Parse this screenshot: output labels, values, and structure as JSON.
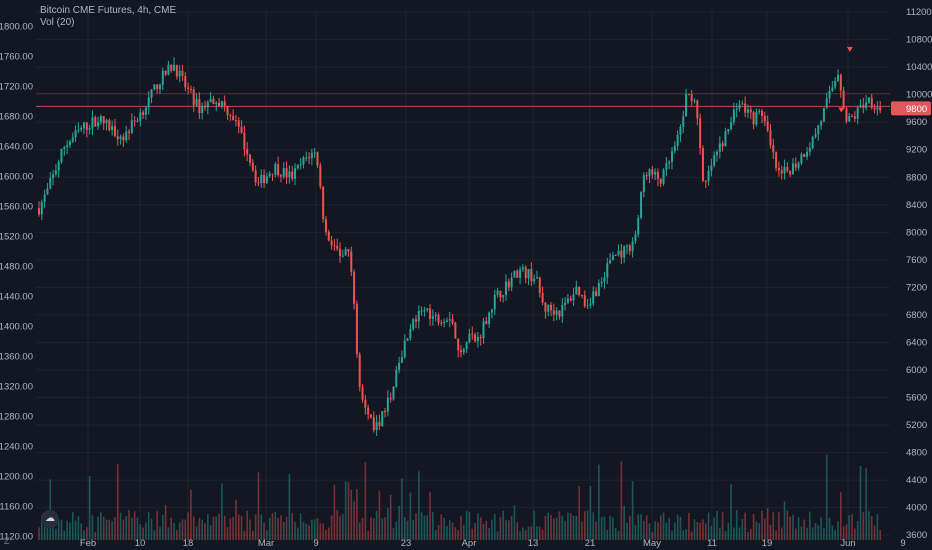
{
  "header": {
    "symbol_line": "Bitcoin CME Futures, 4h, CME",
    "volume_label": "Vol (20)"
  },
  "footer": {
    "zoom_label": "Z"
  },
  "colors": {
    "background": "#131722",
    "grid": "#1f2330",
    "up": "#26a69a",
    "down": "#ef5350",
    "price_tag": "#e0585b",
    "hline": "#ef5350",
    "text": "#b2b5be"
  },
  "chart_data": {
    "type": "candlestick",
    "title": "Bitcoin CME Futures, 4h, CME",
    "left_axis": {
      "ticks": [
        "1800.00",
        "1760.00",
        "1720.00",
        "1680.00",
        "1640.00",
        "1600.00",
        "1560.00",
        "1520.00",
        "1480.00",
        "1440.00",
        "1400.00",
        "1360.00",
        "1320.00",
        "1280.00",
        "1240.00",
        "1200.00",
        "1160.00",
        "1120.00"
      ],
      "range": [
        1115,
        1822
      ]
    },
    "right_axis": {
      "ticks": [
        "11200",
        "10800",
        "10400",
        "10000",
        "9600",
        "9200",
        "8800",
        "8400",
        "8000",
        "7600",
        "7200",
        "6800",
        "6400",
        "6000",
        "5600",
        "5200",
        "4800",
        "4400",
        "4000",
        "3600"
      ],
      "range": [
        3530,
        11230
      ]
    },
    "x_ticks": [
      "Feb",
      "10",
      "18",
      "Mar",
      "9",
      "23",
      "Apr",
      "13",
      "21",
      "May",
      "11",
      "19",
      "Jun",
      "9"
    ],
    "current_price_label": "9800",
    "horizontal_line_price": 9830,
    "grid": true,
    "volume": {
      "name": "Vol (20)",
      "approx_max": 1.0
    },
    "price_path": [
      {
        "t": 0.0,
        "p": 8350
      },
      {
        "t": 0.01,
        "p": 8600
      },
      {
        "t": 0.03,
        "p": 9250
      },
      {
        "t": 0.05,
        "p": 9500
      },
      {
        "t": 0.07,
        "p": 9650
      },
      {
        "t": 0.1,
        "p": 9380
      },
      {
        "t": 0.13,
        "p": 9900
      },
      {
        "t": 0.14,
        "p": 10150
      },
      {
        "t": 0.16,
        "p": 10450
      },
      {
        "t": 0.17,
        "p": 10200
      },
      {
        "t": 0.19,
        "p": 9800
      },
      {
        "t": 0.21,
        "p": 9950
      },
      {
        "t": 0.23,
        "p": 9700
      },
      {
        "t": 0.25,
        "p": 9100
      },
      {
        "t": 0.26,
        "p": 8700
      },
      {
        "t": 0.28,
        "p": 8950
      },
      {
        "t": 0.3,
        "p": 8800
      },
      {
        "t": 0.32,
        "p": 9120
      },
      {
        "t": 0.33,
        "p": 9150
      },
      {
        "t": 0.34,
        "p": 8000
      },
      {
        "t": 0.36,
        "p": 7650
      },
      {
        "t": 0.37,
        "p": 7700
      },
      {
        "t": 0.38,
        "p": 5900
      },
      {
        "t": 0.39,
        "p": 5350
      },
      {
        "t": 0.4,
        "p": 5150
      },
      {
        "t": 0.42,
        "p": 5650
      },
      {
        "t": 0.43,
        "p": 6200
      },
      {
        "t": 0.44,
        "p": 6600
      },
      {
        "t": 0.46,
        "p": 6900
      },
      {
        "t": 0.47,
        "p": 6750
      },
      {
        "t": 0.49,
        "p": 6800
      },
      {
        "t": 0.5,
        "p": 6150
      },
      {
        "t": 0.51,
        "p": 6550
      },
      {
        "t": 0.52,
        "p": 6400
      },
      {
        "t": 0.54,
        "p": 7000
      },
      {
        "t": 0.55,
        "p": 7150
      },
      {
        "t": 0.57,
        "p": 7450
      },
      {
        "t": 0.59,
        "p": 7350
      },
      {
        "t": 0.6,
        "p": 6900
      },
      {
        "t": 0.62,
        "p": 6850
      },
      {
        "t": 0.64,
        "p": 7200
      },
      {
        "t": 0.65,
        "p": 6950
      },
      {
        "t": 0.67,
        "p": 7300
      },
      {
        "t": 0.68,
        "p": 7650
      },
      {
        "t": 0.7,
        "p": 7750
      },
      {
        "t": 0.71,
        "p": 8000
      },
      {
        "t": 0.72,
        "p": 8900
      },
      {
        "t": 0.74,
        "p": 8750
      },
      {
        "t": 0.76,
        "p": 9350
      },
      {
        "t": 0.77,
        "p": 10000
      },
      {
        "t": 0.78,
        "p": 9950
      },
      {
        "t": 0.79,
        "p": 8600
      },
      {
        "t": 0.8,
        "p": 9000
      },
      {
        "t": 0.82,
        "p": 9500
      },
      {
        "t": 0.83,
        "p": 9900
      },
      {
        "t": 0.85,
        "p": 9650
      },
      {
        "t": 0.86,
        "p": 9750
      },
      {
        "t": 0.87,
        "p": 9200
      },
      {
        "t": 0.88,
        "p": 8800
      },
      {
        "t": 0.9,
        "p": 9000
      },
      {
        "t": 0.92,
        "p": 9350
      },
      {
        "t": 0.93,
        "p": 9650
      },
      {
        "t": 0.95,
        "p": 10350
      },
      {
        "t": 0.96,
        "p": 9600
      },
      {
        "t": 0.97,
        "p": 9700
      },
      {
        "t": 0.985,
        "p": 9950
      },
      {
        "t": 1.0,
        "p": 9800
      }
    ],
    "markers": [
      {
        "type": "down-arrow",
        "t": 0.953,
        "p": 10650
      },
      {
        "type": "down-arrow",
        "t": 0.943,
        "p": 9770
      }
    ]
  }
}
